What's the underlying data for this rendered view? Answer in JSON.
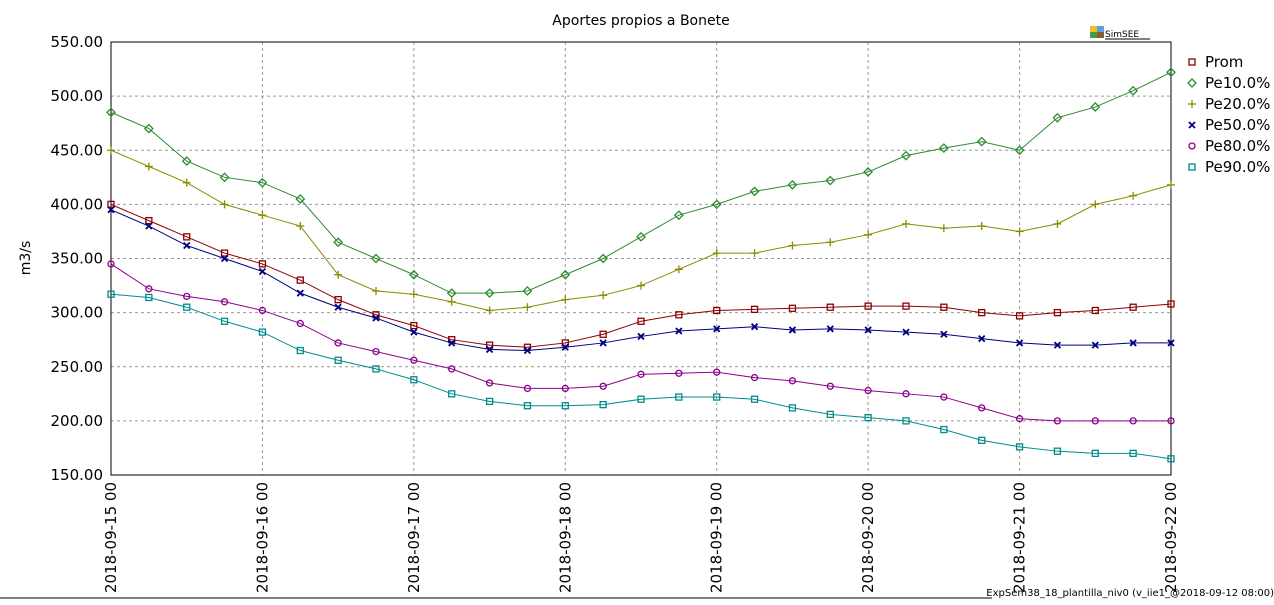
{
  "chart_data": {
    "type": "line",
    "title": "Aportes propios a Bonete",
    "y_label": "m3/s",
    "logo": "SimSEE",
    "footer": "ExpSem38_18_plantilla_niv0 (v_iie1_@2018-09-12 08:00)",
    "grid": true,
    "legend": "right",
    "x": [
      "2018-09-15 00",
      "2018-09-15 06",
      "2018-09-15 12",
      "2018-09-15 18",
      "2018-09-16 00",
      "2018-09-16 06",
      "2018-09-16 12",
      "2018-09-16 18",
      "2018-09-17 00",
      "2018-09-17 06",
      "2018-09-17 12",
      "2018-09-17 18",
      "2018-09-18 00",
      "2018-09-18 06",
      "2018-09-18 12",
      "2018-09-18 18",
      "2018-09-19 00",
      "2018-09-19 06",
      "2018-09-19 12",
      "2018-09-19 18",
      "2018-09-20 00",
      "2018-09-20 06",
      "2018-09-20 12",
      "2018-09-20 18",
      "2018-09-21 00",
      "2018-09-21 06",
      "2018-09-21 12",
      "2018-09-21 18",
      "2018-09-22 00"
    ],
    "xlim": [
      "2018-09-15 00",
      "2018-09-22 00"
    ],
    "xticks": [
      "2018-09-15 00",
      "2018-09-16 00",
      "2018-09-17 00",
      "2018-09-18 00",
      "2018-09-19 00",
      "2018-09-20 00",
      "2018-09-21 00",
      "2018-09-22 00"
    ],
    "ylim": [
      150,
      550
    ],
    "yticks": [
      {
        "value": 150,
        "label": "150.00"
      },
      {
        "value": 200,
        "label": "200.00"
      },
      {
        "value": 250,
        "label": "250.00"
      },
      {
        "value": 300,
        "label": "300.00"
      },
      {
        "value": 350,
        "label": "350.00"
      },
      {
        "value": 400,
        "label": "400.00"
      },
      {
        "value": 450,
        "label": "450.00"
      },
      {
        "value": 500,
        "label": "500.00"
      },
      {
        "value": 550,
        "label": "550.00"
      }
    ],
    "series": [
      {
        "name": "Prom",
        "color": "#8b0000",
        "marker": "square",
        "values": [
          400,
          385,
          370,
          355,
          345,
          330,
          312,
          298,
          288,
          275,
          270,
          268,
          272,
          280,
          292,
          298,
          302,
          303,
          304,
          305,
          306,
          306,
          305,
          300,
          297,
          300,
          302,
          305,
          308
        ]
      },
      {
        "name": "Pe10.0%",
        "color": "#2e8b2e",
        "marker": "diamond",
        "values": [
          485,
          470,
          440,
          425,
          420,
          405,
          365,
          350,
          335,
          318,
          318,
          320,
          335,
          350,
          370,
          390,
          400,
          412,
          418,
          422,
          430,
          445,
          452,
          458,
          450,
          480,
          490,
          505,
          522
        ]
      },
      {
        "name": "Pe20.0%",
        "color": "#8b8b00",
        "marker": "plus",
        "values": [
          450,
          435,
          420,
          400,
          390,
          380,
          335,
          320,
          317,
          310,
          302,
          305,
          312,
          316,
          325,
          340,
          355,
          355,
          362,
          365,
          372,
          382,
          378,
          380,
          375,
          382,
          400,
          408,
          418
        ]
      },
      {
        "name": "Pe50.0%",
        "color": "#000080",
        "marker": "cross",
        "values": [
          395,
          380,
          362,
          350,
          338,
          318,
          305,
          295,
          282,
          272,
          266,
          265,
          268,
          272,
          278,
          283,
          285,
          287,
          284,
          285,
          284,
          282,
          280,
          276,
          272,
          270,
          270,
          272,
          272
        ]
      },
      {
        "name": "Pe80.0%",
        "color": "#8b008b",
        "marker": "circle",
        "values": [
          345,
          322,
          315,
          310,
          302,
          290,
          272,
          264,
          256,
          248,
          235,
          230,
          230,
          232,
          243,
          244,
          245,
          240,
          237,
          232,
          228,
          225,
          222,
          212,
          202,
          200,
          200,
          200,
          200
        ]
      },
      {
        "name": "Pe90.0%",
        "color": "#008b8b",
        "marker": "square",
        "values": [
          317,
          314,
          305,
          292,
          282,
          265,
          256,
          248,
          238,
          225,
          218,
          214,
          214,
          215,
          220,
          222,
          222,
          220,
          212,
          206,
          203,
          200,
          192,
          182,
          176,
          172,
          170,
          170,
          165
        ]
      }
    ]
  }
}
